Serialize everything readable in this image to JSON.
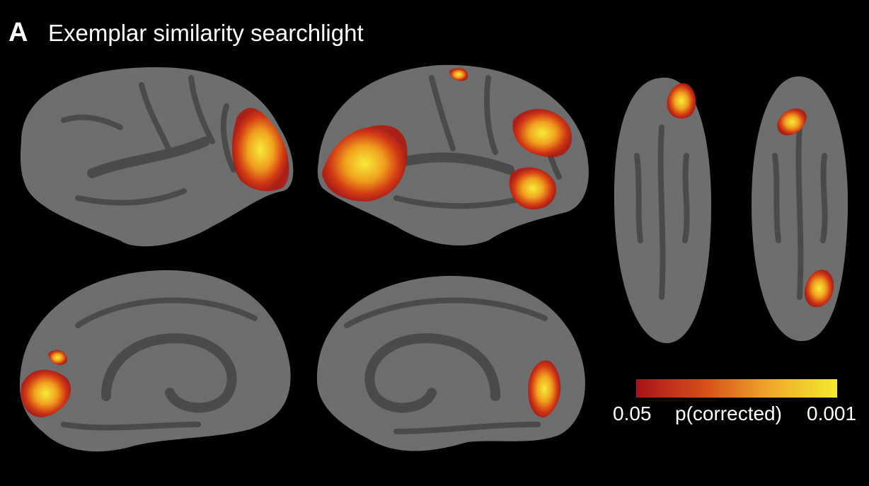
{
  "panel_label": "A",
  "title": "Exemplar similarity searchlight",
  "colorbar": {
    "label": "p(corrected)",
    "min": 0.05,
    "max": 0.001
  }
}
